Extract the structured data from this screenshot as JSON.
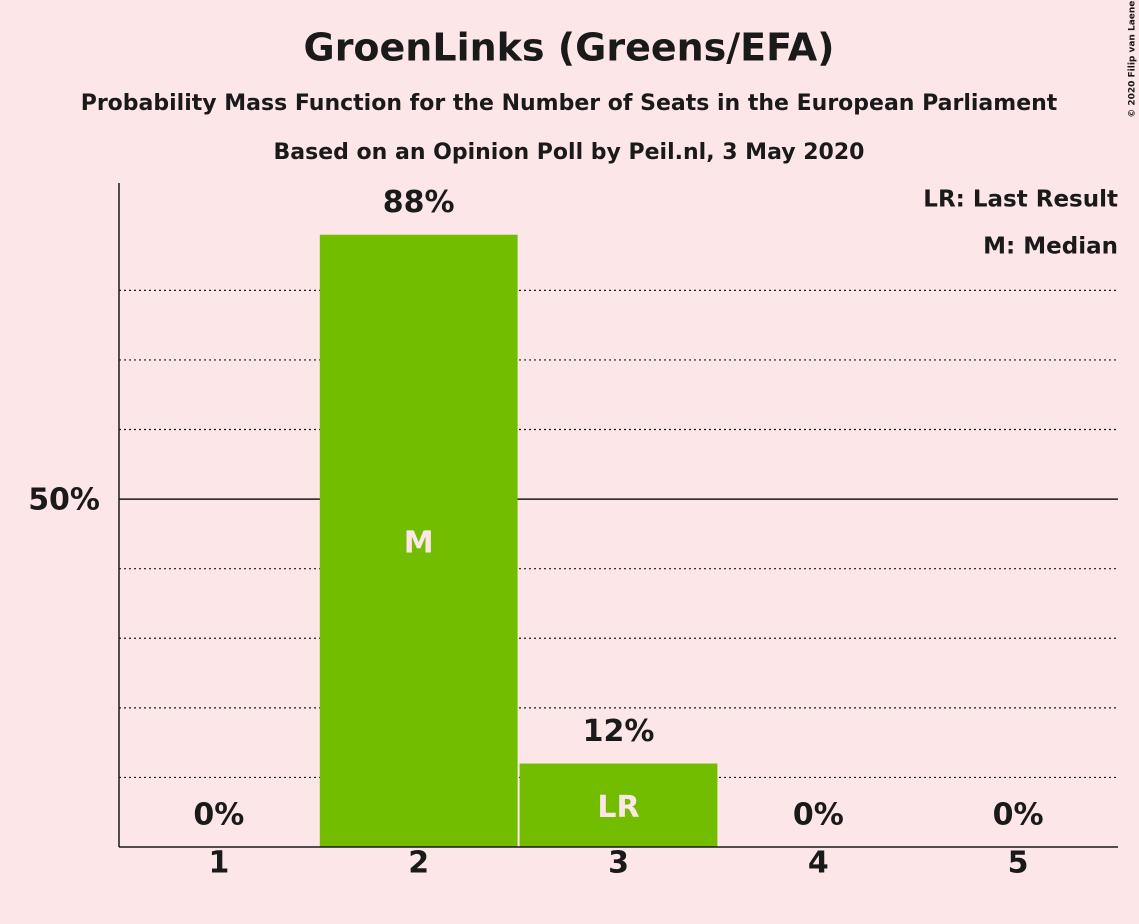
{
  "chart_data": {
    "type": "bar",
    "title": "GroenLinks (Greens/EFA)",
    "subtitle": "Probability Mass Function for the Number of Seats in the European Parliament",
    "subtitle2": "Based on an Opinion Poll by Peil.nl, 3 May 2020",
    "copyright": "© 2020 Filip van Laenen",
    "legend": [
      "LR: Last Result",
      "M: Median"
    ],
    "categories": [
      "1",
      "2",
      "3",
      "4",
      "5"
    ],
    "values": [
      0,
      88,
      12,
      0,
      0
    ],
    "value_labels": [
      "0%",
      "88%",
      "12%",
      "0%",
      "0%"
    ],
    "annotations": [
      {
        "category": "2",
        "label": "M"
      },
      {
        "category": "3",
        "label": "LR"
      }
    ],
    "color": "#73bd00",
    "ylim": [
      0,
      95
    ],
    "yticks": [
      {
        "value": 50,
        "label": "50%"
      }
    ],
    "minor_yticks": [
      10,
      20,
      30,
      40,
      60,
      70,
      80
    ],
    "grid": true
  }
}
